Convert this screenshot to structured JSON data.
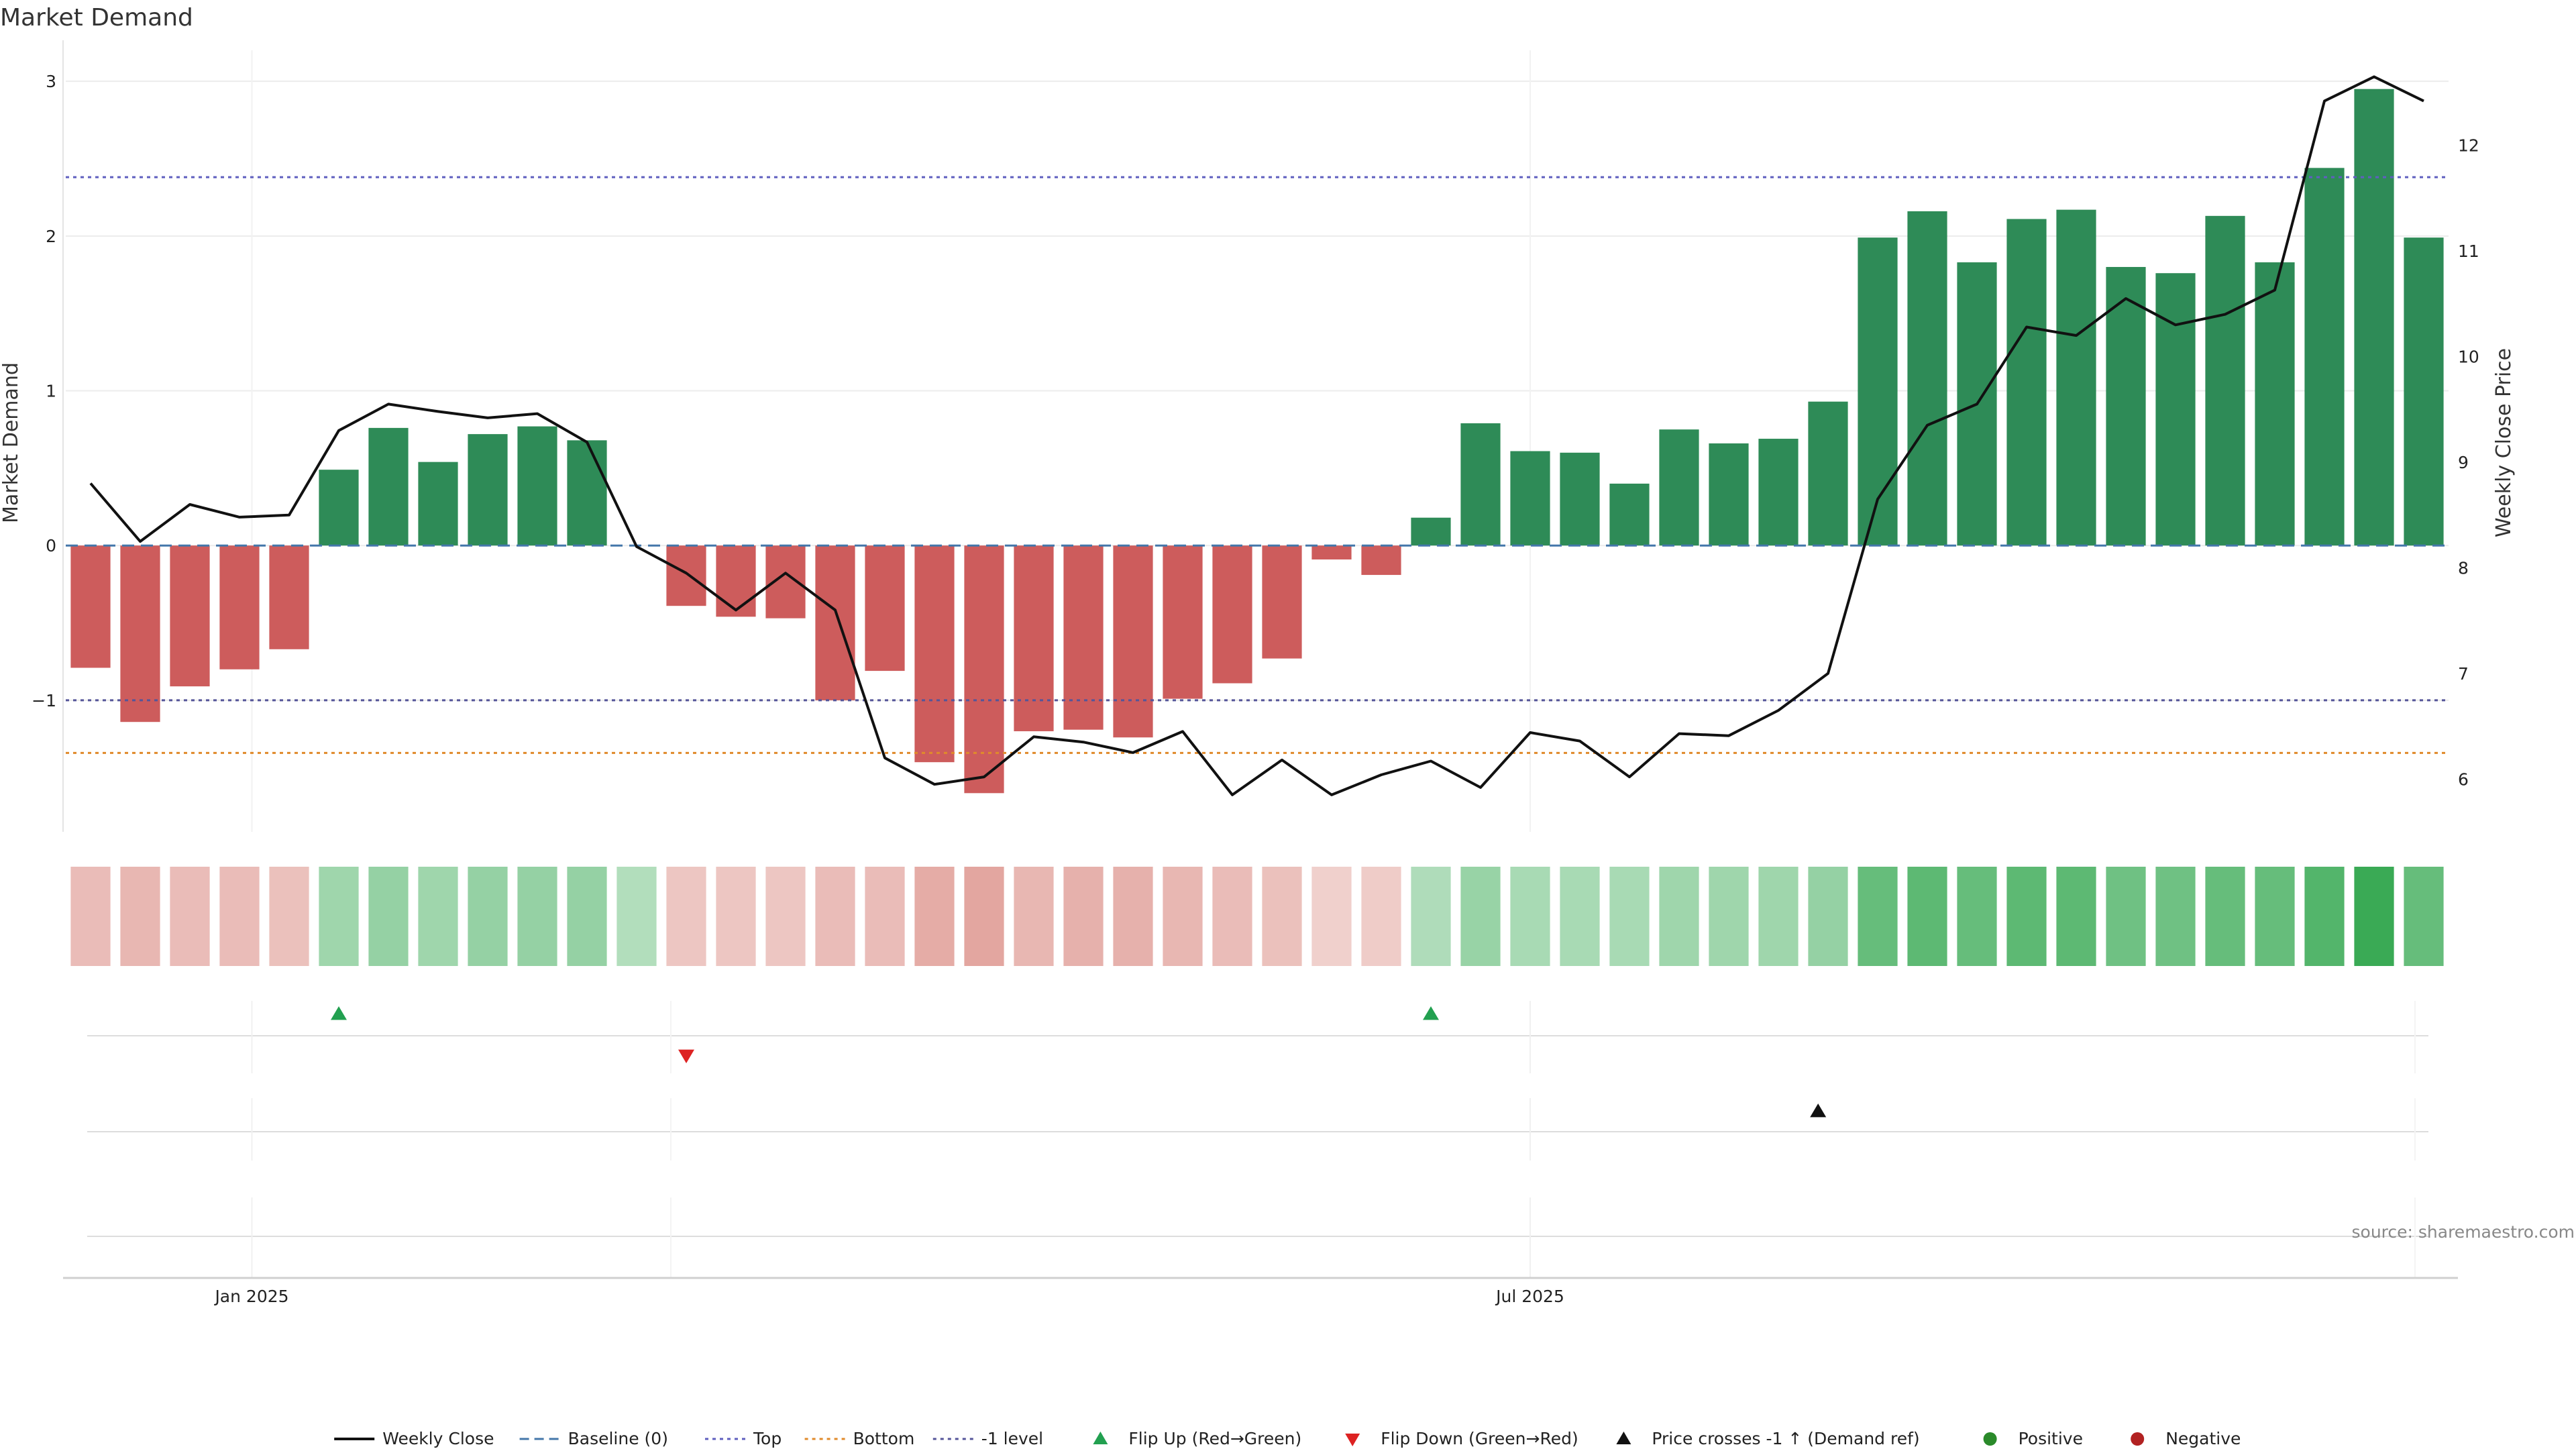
{
  "chart_data": {
    "type": "bar",
    "title": "Market Demand",
    "ylabel": "Market Demand",
    "y2label": "Weekly Close Price",
    "ylim": [
      -1.85,
      3.2
    ],
    "y2lim": [
      5.5,
      12.9
    ],
    "yticks": [
      3,
      2,
      1,
      0,
      -1
    ],
    "ytick_labels": [
      "3",
      "2",
      "1",
      "0",
      "−1"
    ],
    "y2ticks": [
      12,
      11,
      10,
      9,
      8,
      7,
      6
    ],
    "xtick_labels": [
      "Jan 2025",
      "Jul 2025"
    ],
    "xtick_positions": [
      3.75,
      29.5
    ],
    "levels": {
      "top": 2.38,
      "bottom": -1.34,
      "minus_one": -1.0,
      "baseline": 0
    },
    "weeks": 48,
    "demand": [
      -0.79,
      -1.14,
      -0.91,
      -0.8,
      -0.67,
      0.49,
      0.76,
      0.54,
      0.72,
      0.77,
      0.68,
      0,
      -0.39,
      -0.46,
      -0.47,
      -1.0,
      -0.81,
      -1.4,
      -1.6,
      -1.2,
      -1.19,
      -1.24,
      -0.99,
      -0.89,
      -0.73,
      -0.09,
      -0.19,
      0.18,
      0.79,
      0.61,
      0.6,
      0.4,
      0.75,
      0.66,
      0.69,
      0.93,
      1.99,
      2.16,
      1.83,
      2.11,
      2.17,
      1.8,
      1.76,
      2.13,
      1.83,
      2.44,
      2.95,
      1.99
    ],
    "price": [
      8.8,
      8.25,
      8.6,
      8.48,
      8.5,
      9.3,
      9.55,
      9.48,
      9.42,
      9.46,
      9.19,
      8.2,
      7.95,
      7.6,
      7.95,
      7.6,
      6.2,
      5.95,
      6.02,
      6.4,
      6.35,
      6.25,
      6.45,
      5.85,
      6.18,
      5.85,
      6.04,
      6.17,
      5.92,
      6.44,
      6.36,
      6.02,
      6.43,
      6.41,
      6.65,
      7.0,
      8.65,
      9.35,
      9.55,
      10.28,
      10.2,
      10.55,
      10.3,
      10.4,
      10.63,
      12.42,
      12.65,
      12.42
    ],
    "heat_alpha": [
      0.42,
      0.48,
      0.42,
      0.42,
      0.36,
      0.36,
      0.42,
      0.36,
      0.42,
      0.42,
      0.42,
      0.24,
      0.3,
      0.3,
      0.3,
      0.42,
      0.42,
      0.6,
      0.66,
      0.48,
      0.54,
      0.54,
      0.48,
      0.42,
      0.36,
      0.2,
      0.24,
      0.26,
      0.4,
      0.3,
      0.3,
      0.3,
      0.36,
      0.36,
      0.36,
      0.42,
      0.72,
      0.78,
      0.72,
      0.78,
      0.78,
      0.66,
      0.66,
      0.72,
      0.72,
      0.84,
      1.0,
      0.72
    ],
    "flip_up_weeks": [
      5.5,
      27.5
    ],
    "flip_down_weeks": [
      12.5
    ],
    "price_cross_weeks": [
      35.3
    ],
    "colors": {
      "positive_bar": "#2e8b57",
      "negative_bar": "#cd5c5c",
      "heat_positive": "#3aaa55",
      "heat_negative": "#c0392b",
      "line": "#111111",
      "baseline": "#4477aa",
      "top": "#5f5fbf",
      "bottom": "#e08a2b",
      "minus_one": "#555599",
      "flip_up": "#22a050",
      "flip_down": "#dd2222",
      "cross": "#111111",
      "positive_dot": "#2a8a2a",
      "negative_dot": "#b22222"
    },
    "legend": [
      {
        "label": "Weekly Close",
        "marker": "line-solid"
      },
      {
        "label": "Baseline (0)",
        "marker": "line-dashed"
      },
      {
        "label": "Top",
        "marker": "line-dotted-top"
      },
      {
        "label": "Bottom",
        "marker": "line-dotted-bottom"
      },
      {
        "label": "-1 level",
        "marker": "line-dotted-minus"
      },
      {
        "label": "Flip Up (Red→Green)",
        "marker": "triangle-up-green"
      },
      {
        "label": "Flip Down (Green→Red)",
        "marker": "triangle-down-red"
      },
      {
        "label": "Price crosses -1 ↑ (Demand ref)",
        "marker": "triangle-up-black"
      },
      {
        "label": "Positive",
        "marker": "dot-green"
      },
      {
        "label": "Negative",
        "marker": "dot-red"
      }
    ],
    "source": "source: sharemaestro.com"
  }
}
